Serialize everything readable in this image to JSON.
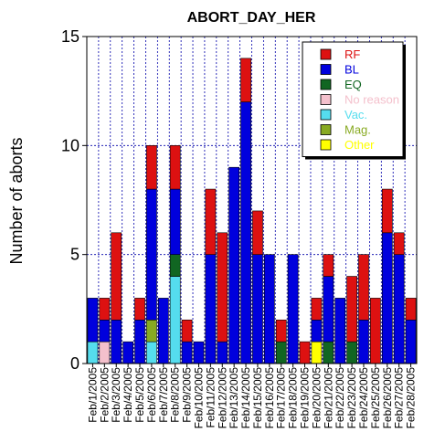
{
  "chart_data": {
    "type": "bar",
    "stacked": true,
    "title": "ABORT_DAY_HER",
    "xlabel": "",
    "ylabel": "Number of aborts",
    "ylim": [
      0,
      15
    ],
    "yticks": [
      0,
      5,
      10,
      15
    ],
    "grid": true,
    "legend_position": "top-right",
    "categories": [
      "Feb/1/2005",
      "Feb/2/2005",
      "Feb/3/2005",
      "Feb/4/2005",
      "Feb/5/2005",
      "Feb/6/2005",
      "Feb/7/2005",
      "Feb/8/2005",
      "Feb/9/2005",
      "Feb/10/2005",
      "Feb/11/2005",
      "Feb/12/2005",
      "Feb/13/2005",
      "Feb/14/2005",
      "Feb/15/2005",
      "Feb/16/2005",
      "Feb/17/2005",
      "Feb/18/2005",
      "Feb/19/2005",
      "Feb/20/2005",
      "Feb/21/2005",
      "Feb/22/2005",
      "Feb/23/2005",
      "Feb/24/2005",
      "Feb/25/2005",
      "Feb/26/2005",
      "Feb/27/2005",
      "Feb/28/2005"
    ],
    "tick_labels": [
      "Feb/1/2005",
      "Feb/2/2005",
      "Feb/3/2005",
      "Feb/4/2005",
      "Feb/5/2005",
      "Feb/6/2005",
      "Feb/7/2005",
      "Feb/8/2005",
      "Feb/9/2005",
      "Feb/10/2005",
      "Feb/11/2005",
      "Feb/12/2005",
      "Feb/13/2005",
      "Feb/14/2005",
      "Feb/15/2005",
      "Feb/16/2005",
      "Feb/17/2005",
      "Feb/18/2005",
      "Feb/19/2005",
      "Feb/20/2005",
      "Feb/21/2005",
      "Feb/22/2005",
      "Feb/23/2005",
      "Feb/24/2005",
      "Feb/25/2005",
      "Feb/26/2005",
      "Feb/27/2005",
      "Feb/28/2005"
    ],
    "series": [
      {
        "name": "Vac.",
        "color": "#55ddee",
        "values": [
          1,
          0,
          0,
          0,
          0,
          1,
          0,
          4,
          0,
          0,
          0,
          0,
          0,
          0,
          0,
          0,
          0,
          0,
          0,
          0,
          0,
          0,
          0,
          0,
          0,
          0,
          0,
          0
        ]
      },
      {
        "name": "No reason",
        "color": "#f4c0cc",
        "values": [
          0,
          1,
          0,
          0,
          0,
          0,
          0,
          0,
          0,
          0,
          0,
          0,
          0,
          0,
          0,
          0,
          0,
          0,
          0,
          0,
          0,
          0,
          0,
          0,
          0,
          0,
          0,
          0
        ]
      },
      {
        "name": "Mag.",
        "color": "#88aa22",
        "values": [
          0,
          0,
          0,
          0,
          0,
          1,
          0,
          0,
          0,
          0,
          0,
          0,
          0,
          0,
          0,
          0,
          0,
          0,
          0,
          0,
          0,
          0,
          0,
          0,
          0,
          0,
          0,
          0
        ]
      },
      {
        "name": "Other",
        "color": "#ffff00",
        "values": [
          0,
          0,
          0,
          0,
          0,
          0,
          0,
          0,
          0,
          0,
          0,
          0,
          0,
          0,
          0,
          0,
          0,
          0,
          0,
          1,
          0,
          0,
          0,
          0,
          0,
          0,
          0,
          0
        ]
      },
      {
        "name": "EQ",
        "color": "#116622",
        "values": [
          0,
          0,
          0,
          0,
          0,
          0,
          0,
          1,
          0,
          0,
          0,
          0,
          0,
          0,
          0,
          0,
          1,
          0,
          0,
          0,
          1,
          0,
          1,
          0,
          0,
          0,
          0,
          0
        ]
      },
      {
        "name": "BL",
        "color": "#0000dd",
        "values": [
          2,
          1,
          2,
          1,
          2,
          6,
          3,
          3,
          1,
          1,
          5,
          1,
          9,
          12,
          5,
          5,
          0,
          5,
          0,
          1,
          3,
          3,
          0,
          2,
          0,
          6,
          5,
          2
        ]
      },
      {
        "name": "RF",
        "color": "#dd1111",
        "values": [
          0,
          1,
          4,
          0,
          1,
          2,
          0,
          2,
          1,
          0,
          3,
          5,
          0,
          2,
          2,
          0,
          1,
          0,
          1,
          1,
          1,
          0,
          3,
          3,
          3,
          2,
          1,
          1
        ]
      }
    ],
    "legend_order": [
      "RF",
      "BL",
      "EQ",
      "No reason",
      "Vac.",
      "Mag.",
      "Other"
    ]
  }
}
